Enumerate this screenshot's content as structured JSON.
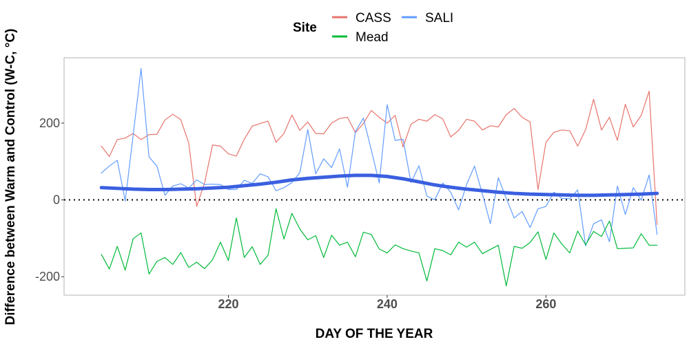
{
  "chart_data": {
    "type": "line",
    "xlabel": "DAY OF THE YEAR",
    "ylabel": "Difference between Warm and Control (W-C, °C)",
    "xlim": [
      199.3,
      277.5
    ],
    "ylim": [
      -248,
      370
    ],
    "xticks": [
      220,
      240,
      260
    ],
    "yticks": [
      -200,
      0,
      200
    ],
    "grid": false,
    "legend": {
      "title": "Site",
      "position": "top",
      "entries": [
        "CASS",
        "SALI",
        "Mead"
      ]
    },
    "reference_line": {
      "y": 0,
      "style": "dotted"
    },
    "series": [
      {
        "name": "CASS",
        "color": "#e8736b",
        "x": [
          204,
          205,
          206,
          207,
          208,
          209,
          210,
          211,
          212,
          213,
          214,
          215,
          216,
          217,
          218,
          219,
          220,
          221,
          222,
          223,
          224,
          225,
          226,
          227,
          228,
          229,
          230,
          231,
          232,
          233,
          234,
          235,
          236,
          237,
          238,
          239,
          240,
          241,
          242,
          243,
          244,
          245,
          246,
          247,
          248,
          249,
          250,
          251,
          252,
          253,
          254,
          255,
          256,
          257,
          258,
          259,
          260,
          261,
          262,
          263,
          264,
          265,
          266,
          267,
          268,
          269,
          270,
          271,
          272,
          273,
          274
        ],
        "values": [
          140,
          113,
          157,
          161,
          173,
          157,
          170,
          171,
          208,
          223,
          209,
          148,
          -17,
          44,
          143,
          140,
          120,
          114,
          158,
          192,
          199,
          205,
          150,
          173,
          221,
          181,
          203,
          173,
          172,
          200,
          212,
          215,
          175,
          199,
          233,
          215,
          200,
          220,
          138,
          197,
          210,
          205,
          222,
          211,
          164,
          181,
          210,
          205,
          182,
          193,
          190,
          222,
          238,
          215,
          203,
          27,
          150,
          176,
          182,
          180,
          140,
          183,
          262,
          182,
          215,
          155,
          249,
          190,
          220,
          283,
          -64
        ]
      },
      {
        "name": "SALI",
        "color": "#619cff",
        "x": [
          204,
          205,
          206,
          207,
          208,
          209,
          210,
          211,
          212,
          213,
          214,
          215,
          216,
          217,
          218,
          219,
          220,
          221,
          222,
          223,
          224,
          225,
          226,
          227,
          228,
          229,
          230,
          231,
          232,
          233,
          234,
          235,
          236,
          237,
          238,
          239,
          240,
          241,
          242,
          243,
          244,
          245,
          246,
          247,
          248,
          249,
          250,
          251,
          252,
          253,
          254,
          255,
          256,
          257,
          258,
          259,
          260,
          261,
          262,
          263,
          264,
          265,
          266,
          267,
          268,
          269,
          270,
          271,
          272,
          273,
          274
        ],
        "values": [
          70,
          88,
          103,
          -3,
          168,
          342,
          112,
          88,
          12,
          36,
          42,
          31,
          52,
          40,
          41,
          40,
          27,
          27,
          51,
          43,
          68,
          60,
          24,
          32,
          45,
          71,
          183,
          68,
          107,
          84,
          133,
          33,
          178,
          213,
          130,
          44,
          248,
          155,
          158,
          45,
          89,
          10,
          0,
          44,
          20,
          -26,
          40,
          88,
          15,
          -62,
          58,
          4,
          -47,
          -30,
          -72,
          -23,
          -17,
          20,
          4,
          3,
          26,
          -120,
          -62,
          -52,
          -109,
          36,
          -38,
          32,
          -1,
          65,
          -90
        ]
      },
      {
        "name": "Mead",
        "color": "#00ba38",
        "x": [
          204,
          205,
          206,
          207,
          208,
          209,
          210,
          211,
          212,
          213,
          214,
          215,
          216,
          217,
          218,
          219,
          220,
          221,
          222,
          223,
          224,
          225,
          226,
          227,
          228,
          229,
          230,
          231,
          232,
          233,
          234,
          235,
          236,
          237,
          238,
          239,
          240,
          241,
          242,
          243,
          244,
          245,
          246,
          247,
          248,
          249,
          250,
          251,
          252,
          253,
          254,
          255,
          256,
          257,
          258,
          259,
          260,
          261,
          262,
          263,
          264,
          265,
          266,
          267,
          268,
          269,
          270,
          271,
          272,
          273,
          274
        ],
        "values": [
          -142,
          -180,
          -121,
          -183,
          -101,
          -86,
          -193,
          -160,
          -150,
          -168,
          -137,
          -176,
          -162,
          -179,
          -156,
          -110,
          -158,
          -47,
          -150,
          -122,
          -168,
          -144,
          -23,
          -102,
          -35,
          -76,
          -104,
          -93,
          -150,
          -92,
          -118,
          -110,
          -148,
          -84,
          -90,
          -128,
          -138,
          -117,
          -127,
          -133,
          -138,
          -211,
          -127,
          -132,
          -143,
          -110,
          -123,
          -110,
          -140,
          -129,
          -118,
          -224,
          -121,
          -126,
          -111,
          -83,
          -155,
          -86,
          -115,
          -138,
          -81,
          -117,
          -82,
          -95,
          -55,
          -127,
          -126,
          -125,
          -88,
          -118,
          -118
        ]
      },
      {
        "name": "",
        "color": "#3a5fe0",
        "x": [
          204,
          206,
          208,
          210,
          212,
          214,
          216,
          218,
          220,
          222,
          224,
          226,
          228,
          230,
          232,
          234,
          236,
          238,
          240,
          242,
          244,
          246,
          248,
          250,
          252,
          254,
          256,
          258,
          260,
          262,
          264,
          266,
          268,
          270,
          272,
          274
        ],
        "values": [
          32,
          30,
          28,
          27,
          27,
          28,
          29,
          31,
          33,
          37,
          41,
          46,
          52,
          56,
          59,
          62,
          64,
          64,
          61,
          55,
          47,
          39,
          33,
          28,
          24,
          20,
          17,
          15,
          14,
          13,
          12,
          12,
          13,
          14,
          15,
          17
        ]
      }
    ]
  }
}
